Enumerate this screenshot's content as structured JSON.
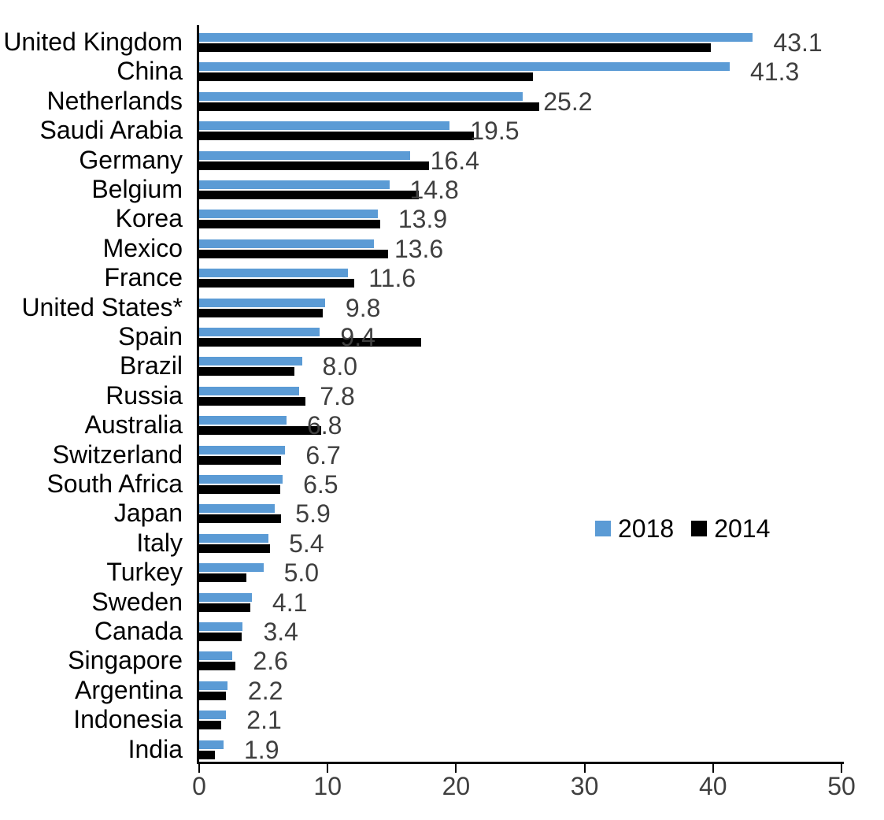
{
  "chart_data": {
    "type": "bar",
    "orientation": "horizontal",
    "title": "",
    "xlabel": "",
    "ylabel": "",
    "categories": [
      "United Kingdom",
      "China",
      "Netherlands",
      "Saudi Arabia",
      "Germany",
      "Belgium",
      "Korea",
      "Mexico",
      "France",
      "United States*",
      "Spain",
      "Brazil",
      "Russia",
      "Australia",
      "Switzerland",
      "South Africa",
      "Japan",
      "Italy",
      "Turkey",
      "Sweden",
      "Canada",
      "Singapore",
      "Argentina",
      "Indonesia",
      "India"
    ],
    "series": [
      {
        "name": "2018",
        "color": "#5B9BD5",
        "values": [
          43.1,
          41.3,
          25.2,
          19.5,
          16.4,
          14.8,
          13.9,
          13.6,
          11.6,
          9.8,
          9.4,
          8.0,
          7.8,
          6.8,
          6.7,
          6.5,
          5.9,
          5.4,
          5.0,
          4.1,
          3.4,
          2.6,
          2.2,
          2.1,
          1.9
        ]
      },
      {
        "name": "2014",
        "color": "#000000",
        "values": [
          39.8,
          26.0,
          26.5,
          21.4,
          17.9,
          17.1,
          14.1,
          14.7,
          12.1,
          9.6,
          17.3,
          7.4,
          8.3,
          9.5,
          6.4,
          6.3,
          6.4,
          5.5,
          3.7,
          4.0,
          3.3,
          2.8,
          2.1,
          1.7,
          1.2
        ]
      }
    ],
    "value_labels": [
      "43.1",
      "41.3",
      "25.2",
      "19.5",
      "16.4",
      "14.8",
      "13.9",
      "13.6",
      "11.6",
      "9.8",
      "9.4",
      "8.0",
      "7.8",
      "6.8",
      "6.7",
      "6.5",
      "5.9",
      "5.4",
      "5.0",
      "4.1",
      "3.4",
      "2.6",
      "2.2",
      "2.1",
      "1.9"
    ],
    "value_labels_refer_to": "2018",
    "x_ticks": [
      "0",
      "10",
      "20",
      "30",
      "40",
      "50"
    ],
    "xlim": [
      0,
      50
    ],
    "grid": false,
    "legend": [
      "2018",
      "2014"
    ],
    "legend_position": "center-right"
  },
  "styles": {
    "accent_blue": "#5B9BD5",
    "bar_black": "#000000",
    "value_label_color": "#3f3f3f",
    "tick_label_color": "#3f3f3f",
    "axis_color": "#000000",
    "background": "#ffffff"
  }
}
